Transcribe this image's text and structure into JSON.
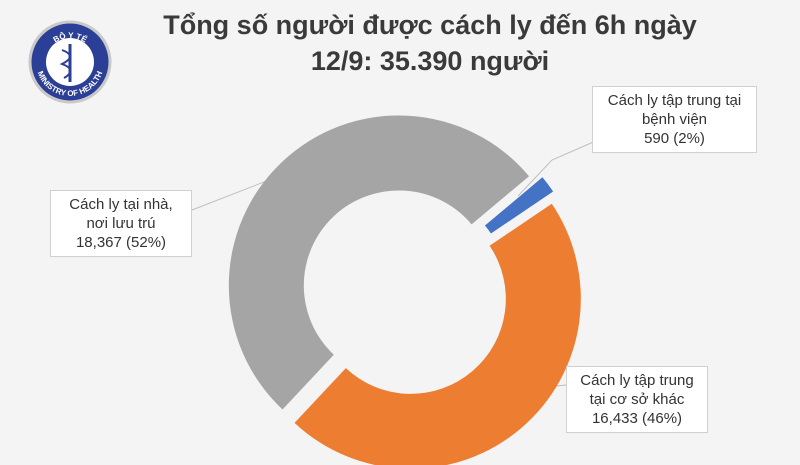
{
  "logo": {
    "top": "BỘ Y TẾ",
    "bottom": "MINISTRY OF HEALTH"
  },
  "chart_data": {
    "type": "donut",
    "title": [
      "Tổng số người được cách ly đến 6h ngày",
      "12/9: 35.390 người"
    ],
    "categories": [
      "Cách ly tập trung tại bệnh viện",
      "Cách ly tập trung tại cơ sở khác",
      "Cách ly tại nhà, nơi lưu trú"
    ],
    "values": [
      590,
      16433,
      18367
    ],
    "value_labels": [
      "590 (2%)",
      "16,433 (46%)",
      "18,367 (52%)"
    ],
    "colors": [
      "#4472c4",
      "#ed7d31",
      "#a5a5a5"
    ]
  }
}
